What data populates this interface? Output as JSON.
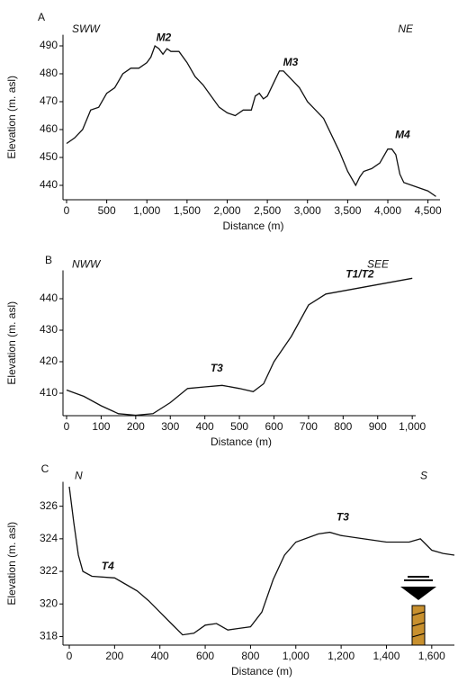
{
  "chart_data": [
    {
      "type": "line",
      "panel": "A",
      "left_label": "SWW",
      "right_label": "NE",
      "x_label": "Distance (m)",
      "y_label": "Elevation (m. asl)",
      "color": "#111111",
      "annotations": [
        {
          "text": "M2",
          "color": "#1f6fd6"
        },
        {
          "text": "M3",
          "color": "#3aa935"
        },
        {
          "text": "M4",
          "color": "#f5a623"
        }
      ],
      "x": [
        0,
        100,
        200,
        300,
        400,
        500,
        600,
        700,
        800,
        900,
        1000,
        1050,
        1100,
        1150,
        1200,
        1250,
        1300,
        1400,
        1500,
        1600,
        1700,
        1800,
        1900,
        2000,
        2100,
        2200,
        2300,
        2350,
        2400,
        2450,
        2500,
        2600,
        2650,
        2700,
        2800,
        2900,
        3000,
        3100,
        3200,
        3300,
        3400,
        3500,
        3600,
        3650,
        3700,
        3800,
        3900,
        4000,
        4050,
        4100,
        4150,
        4200,
        4300,
        4400,
        4500,
        4600
      ],
      "values": [
        455,
        457,
        460,
        467,
        468,
        473,
        475,
        480,
        482,
        482,
        484,
        486,
        490,
        489,
        487,
        489,
        488,
        488,
        484,
        479,
        476,
        472,
        468,
        466,
        465,
        467,
        467,
        472,
        473,
        471,
        472,
        478,
        481,
        481,
        478,
        475,
        470,
        467,
        464,
        458,
        452,
        445,
        440,
        443,
        445,
        446,
        448,
        453,
        453,
        451,
        444,
        441,
        440,
        439,
        438,
        436
      ],
      "xlim": [
        0,
        4650
      ],
      "ylim": [
        435,
        494
      ],
      "xticks": [
        0,
        500,
        {
          "value": 1000,
          "label": "1,000"
        },
        {
          "value": 1500,
          "label": "1,500"
        },
        {
          "value": 2000,
          "label": "2,000"
        },
        {
          "value": 2500,
          "label": "2,500"
        },
        {
          "value": 3000,
          "label": "3,000"
        },
        {
          "value": 3500,
          "label": "3,500"
        },
        {
          "value": 4000,
          "label": "4,000"
        },
        {
          "value": 4500,
          "label": "4,500"
        }
      ],
      "yticks": [
        440,
        450,
        460,
        470,
        480,
        490
      ]
    },
    {
      "type": "line",
      "panel": "B",
      "left_label": "NWW",
      "right_label": "SEE",
      "x_label": "Distance (m)",
      "y_label": "Elevation (m. asl)",
      "color": "#111111",
      "annotations": [
        {
          "text": "T3",
          "color": "#3aa935"
        },
        {
          "text": "T1/T2",
          "color": "#1f6fd6"
        }
      ],
      "x": [
        0,
        50,
        100,
        150,
        200,
        250,
        300,
        350,
        400,
        450,
        500,
        540,
        570,
        600,
        650,
        700,
        750,
        800,
        850,
        900,
        950,
        1000
      ],
      "values": [
        411,
        409,
        406,
        403.5,
        403,
        403.5,
        407,
        411.5,
        412,
        412.5,
        411.5,
        410.5,
        413,
        420,
        428,
        438,
        441.5,
        442.5,
        443.5,
        444.5,
        445.5,
        446.5
      ],
      "xlim": [
        0,
        1010
      ],
      "ylim": [
        403,
        449
      ],
      "xticks": [
        0,
        100,
        200,
        300,
        400,
        500,
        600,
        700,
        800,
        900,
        {
          "value": 1000,
          "label": "1,000"
        }
      ],
      "yticks": [
        410,
        420,
        430,
        440
      ]
    },
    {
      "type": "line",
      "panel": "C",
      "left_label": "N",
      "right_label": "S",
      "x_label": "Distance (m)",
      "y_label": "Elevation (m. asl)",
      "color": "#111111",
      "annotations": [
        {
          "text": "T4",
          "color": "#f5a623"
        },
        {
          "text": "T3",
          "color": "#3aa935"
        }
      ],
      "x": [
        0,
        20,
        40,
        60,
        100,
        200,
        250,
        300,
        350,
        400,
        450,
        500,
        550,
        600,
        650,
        700,
        750,
        800,
        850,
        900,
        950,
        1000,
        1100,
        1150,
        1200,
        1300,
        1400,
        1500,
        1550,
        1600,
        1650,
        1700
      ],
      "values": [
        327.2,
        325,
        323,
        322,
        321.7,
        321.6,
        321.2,
        320.8,
        320.2,
        319.5,
        318.8,
        318.1,
        318.2,
        318.7,
        318.8,
        318.4,
        318.5,
        318.6,
        319.5,
        321.5,
        323,
        323.8,
        324.3,
        324.4,
        324.2,
        324,
        323.8,
        323.8,
        324,
        323.3,
        323.1,
        323
      ],
      "xlim": [
        0,
        1700
      ],
      "ylim": [
        317.5,
        327.5
      ],
      "xticks": [
        0,
        200,
        400,
        600,
        800,
        {
          "value": 1000,
          "label": "1,000"
        },
        {
          "value": 1200,
          "label": "1,200"
        },
        {
          "value": 1400,
          "label": "1,400"
        },
        {
          "value": 1600,
          "label": "1,600"
        }
      ],
      "yticks": [
        318,
        320,
        322,
        324,
        326
      ]
    }
  ]
}
